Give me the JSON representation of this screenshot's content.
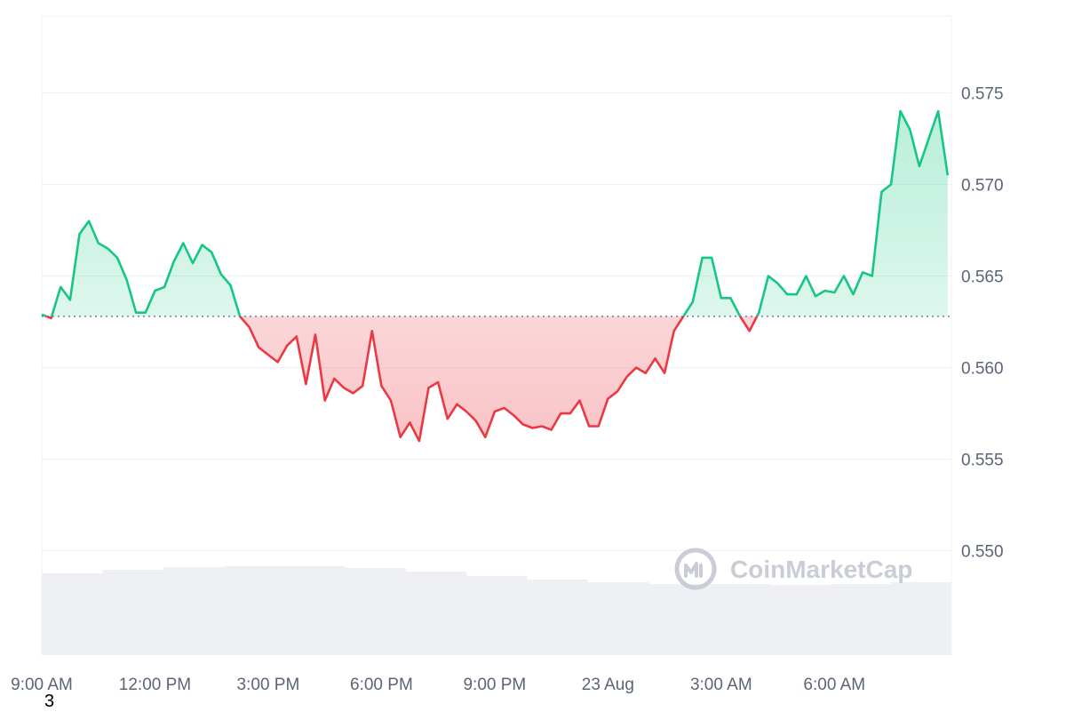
{
  "watermark": {
    "text": "CoinMarketCap",
    "icon": "coinmarketcap-logo"
  },
  "corner_note": "3",
  "colors": {
    "up": "#16c784",
    "down": "#ea3943",
    "grid": "#eff2f5",
    "baseline": "#5b6478",
    "volume": "#eef0f3"
  },
  "chart_data": {
    "type": "area",
    "title": "",
    "xlabel": "",
    "ylabel": "",
    "ylim": [
      0.5443,
      0.5792
    ],
    "yticks": [
      0.55,
      0.555,
      0.56,
      0.565,
      0.57,
      0.575
    ],
    "ytick_labels": [
      "0.550",
      "0.555",
      "0.560",
      "0.565",
      "0.570",
      "0.575"
    ],
    "xticks": [
      0,
      3,
      6,
      9,
      12,
      15,
      18,
      21
    ],
    "xtick_labels": [
      "9:00 AM",
      "12:00 PM",
      "3:00 PM",
      "6:00 PM",
      "9:00 PM",
      "23 Aug",
      "3:00 AM",
      "6:00 AM"
    ],
    "x_unit": "hours since 9:00 AM",
    "xlim": [
      0,
      24.1
    ],
    "baseline": 0.5628,
    "grid": true,
    "y_axis_position": "right",
    "series": [
      {
        "x": [
          0,
          0.25,
          0.5,
          0.75,
          1.0,
          1.25,
          1.5,
          1.75,
          2.0,
          2.25,
          2.5,
          2.75,
          3.0,
          3.25,
          3.5,
          3.75,
          4.0,
          4.25,
          4.5,
          4.75,
          5.0,
          5.25,
          5.5,
          5.75,
          6.0,
          6.25,
          6.5,
          6.75,
          7.0,
          7.25,
          7.5,
          7.75,
          8.0,
          8.25,
          8.5,
          8.75,
          9.0,
          9.25,
          9.5,
          9.75,
          10.0,
          10.25,
          10.5,
          10.75,
          11.0,
          11.25,
          11.5,
          11.75,
          12.0,
          12.25,
          12.5,
          12.75,
          13.0,
          13.25,
          13.5,
          13.75,
          14.0,
          14.25,
          14.5,
          14.75,
          15.0,
          15.25,
          15.5,
          15.75,
          16.0,
          16.25,
          16.5,
          16.75,
          17.0,
          17.25,
          17.5,
          17.75,
          18.0,
          18.25,
          18.5,
          18.75,
          19.0,
          19.25,
          19.5,
          19.75,
          20.0,
          20.25,
          20.5,
          20.75,
          21.0,
          21.25,
          21.5,
          21.75,
          22.0,
          22.25,
          22.5,
          22.75,
          23.0,
          23.25,
          23.5,
          23.75,
          24.0
        ],
        "values": [
          0.5629,
          0.5627,
          0.5644,
          0.5637,
          0.5673,
          0.568,
          0.5668,
          0.5665,
          0.566,
          0.5648,
          0.563,
          0.563,
          0.5642,
          0.5644,
          0.5658,
          0.5668,
          0.5657,
          0.5667,
          0.5663,
          0.5651,
          0.5645,
          0.5628,
          0.5622,
          0.5611,
          0.5607,
          0.5603,
          0.5612,
          0.5617,
          0.5591,
          0.5618,
          0.5582,
          0.5594,
          0.5589,
          0.5586,
          0.559,
          0.562,
          0.559,
          0.5582,
          0.5562,
          0.557,
          0.556,
          0.5589,
          0.5592,
          0.5572,
          0.558,
          0.5576,
          0.5571,
          0.5562,
          0.5576,
          0.5578,
          0.5574,
          0.5569,
          0.5567,
          0.5568,
          0.5566,
          0.5575,
          0.5575,
          0.5582,
          0.5568,
          0.5568,
          0.5583,
          0.5587,
          0.5595,
          0.56,
          0.5597,
          0.5605,
          0.5597,
          0.562,
          0.5628,
          0.5636,
          0.566,
          0.566,
          0.5638,
          0.5638,
          0.5628,
          0.562,
          0.563,
          0.565,
          0.5646,
          0.564,
          0.564,
          0.565,
          0.5639,
          0.5642,
          0.5641,
          0.565,
          0.564,
          0.5652,
          0.565,
          0.5696,
          0.57,
          0.574,
          0.573,
          0.571,
          0.5725,
          0.574,
          0.5705
        ]
      }
    ]
  }
}
